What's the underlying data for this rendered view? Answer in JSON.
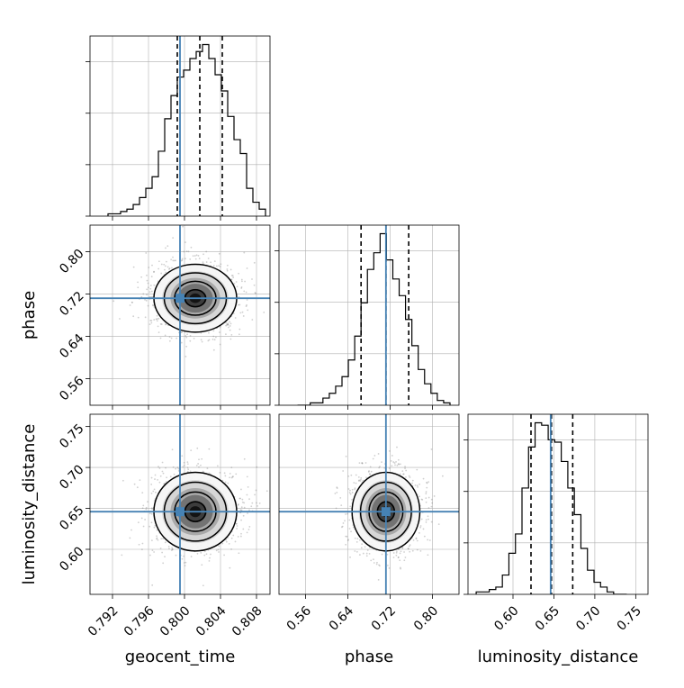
{
  "chart_data": {
    "type": "corner",
    "parameters": [
      "geocent_time",
      "phase",
      "luminosity_distance"
    ],
    "axis_labels": {
      "geocent_time": "geocent_time",
      "phase": "phase",
      "luminosity_distance": "luminosity_distance"
    },
    "ranges": {
      "geocent_time": [
        0.7895,
        0.8095
      ],
      "phase": [
        0.51,
        0.85
      ],
      "luminosity_distance": [
        0.545,
        0.765
      ]
    },
    "ticks": {
      "geocent_time": [
        "0.792",
        "0.796",
        "0.800",
        "0.804",
        "0.808"
      ],
      "phase": [
        "0.56",
        "0.64",
        "0.72",
        "0.80"
      ],
      "luminosity_distance": [
        "0.60",
        "0.65",
        "0.70",
        "0.75"
      ]
    },
    "truths": {
      "geocent_time": 0.7995,
      "phase": 0.712,
      "luminosity_distance": 0.646
    },
    "quantiles": {
      "geocent_time": [
        0.7992,
        0.8017,
        0.8042
      ],
      "phase": [
        0.665,
        0.712,
        0.755
      ],
      "luminosity_distance": [
        0.622,
        0.647,
        0.673
      ]
    },
    "histograms": {
      "geocent_time": {
        "edges": [
          0.7915,
          0.7922,
          0.7929,
          0.7936,
          0.7943,
          0.795,
          0.7957,
          0.7964,
          0.7971,
          0.7978,
          0.7985,
          0.7992,
          0.7999,
          0.8006,
          0.8013,
          0.802,
          0.8027,
          0.8034,
          0.8041,
          0.8048,
          0.8055,
          0.8062,
          0.8069,
          0.8076,
          0.8083,
          0.809
        ],
        "counts": [
          1,
          1,
          2,
          3,
          5,
          8,
          12,
          17,
          28,
          42,
          52,
          60,
          63,
          68,
          71,
          74,
          68,
          61,
          54,
          43,
          33,
          27,
          12,
          6,
          3
        ]
      },
      "phase": {
        "edges": [
          0.545,
          0.557,
          0.569,
          0.581,
          0.593,
          0.605,
          0.617,
          0.629,
          0.641,
          0.653,
          0.665,
          0.677,
          0.689,
          0.701,
          0.713,
          0.725,
          0.737,
          0.749,
          0.761,
          0.773,
          0.785,
          0.797,
          0.809,
          0.821,
          0.833
        ],
        "counts": [
          0,
          0,
          1,
          1,
          3,
          5,
          8,
          12,
          19,
          29,
          43,
          57,
          64,
          72,
          61,
          53,
          46,
          36,
          25,
          15,
          9,
          5,
          2,
          1
        ]
      },
      "luminosity_distance": {
        "edges": [
          0.555,
          0.563,
          0.571,
          0.579,
          0.587,
          0.595,
          0.603,
          0.611,
          0.619,
          0.627,
          0.635,
          0.643,
          0.651,
          0.659,
          0.667,
          0.675,
          0.683,
          0.691,
          0.699,
          0.707,
          0.715,
          0.723,
          0.731,
          0.739
        ],
        "counts": [
          1,
          1,
          2,
          3,
          8,
          17,
          25,
          44,
          61,
          71,
          70,
          64,
          63,
          55,
          44,
          33,
          19,
          10,
          5,
          3,
          1,
          0,
          0
        ]
      }
    },
    "pairs": [
      {
        "x": "geocent_time",
        "y": "phase",
        "center": [
          0.8012,
          0.712
        ],
        "spread": [
          0.0023,
          0.032
        ],
        "corr": 0.0
      },
      {
        "x": "geocent_time",
        "y": "luminosity_distance",
        "center": [
          0.8012,
          0.646
        ],
        "spread": [
          0.0023,
          0.024
        ],
        "corr": 0.0
      },
      {
        "x": "phase",
        "y": "luminosity_distance",
        "center": [
          0.712,
          0.646
        ],
        "spread": [
          0.032,
          0.024
        ],
        "corr": 0.0
      }
    ],
    "grid": true,
    "colors": {
      "truth": "#4682b4",
      "hist": "#000000",
      "quantile": "#000000",
      "grid": "#b0b0b0",
      "density": [
        "#f5f5f5",
        "#d4d4d4",
        "#a6a6a6",
        "#707070",
        "#3a3a3a",
        "#111111"
      ]
    }
  }
}
